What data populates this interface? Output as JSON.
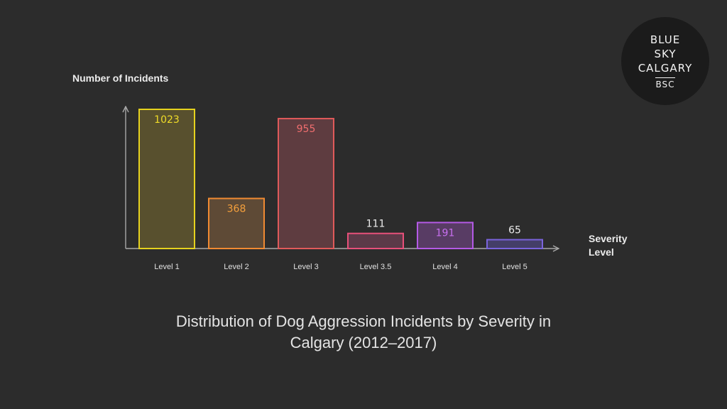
{
  "chart_data": {
    "type": "bar",
    "title": "Distribution of Dog Aggression Incidents by Severity in Calgary (2012–2017)",
    "ylabel": "Number of Incidents",
    "xlabel": "Severity Level",
    "categories": [
      "Level 1",
      "Level 2",
      "Level 3",
      "Level 3.5",
      "Level 4",
      "Level 5"
    ],
    "values": [
      1023,
      368,
      955,
      111,
      191,
      65
    ],
    "data_labels": [
      "1023",
      "368",
      "955",
      "111",
      "191",
      "65"
    ],
    "label_position": [
      "inside",
      "inside",
      "inside",
      "above",
      "inside",
      "above"
    ],
    "ylim": [
      0,
      1023
    ],
    "grid": false,
    "colors": {
      "stroke": [
        "#e6d21e",
        "#f08a32",
        "#e05a5a",
        "#e8507a",
        "#b45ae6",
        "#7a64dc"
      ],
      "fill": [
        "#58502e",
        "#5e4a36",
        "#5e3c40",
        "#5c3a48",
        "#583c64",
        "#443e68"
      ],
      "label": [
        "#f0dc28",
        "#f5a03c",
        "#f06e6e",
        "#ececec",
        "#c870f0",
        "#ececec"
      ]
    }
  },
  "badge": {
    "lines": [
      "BLUE",
      "SKY",
      "CALGARY"
    ],
    "abbr": "BSC"
  }
}
